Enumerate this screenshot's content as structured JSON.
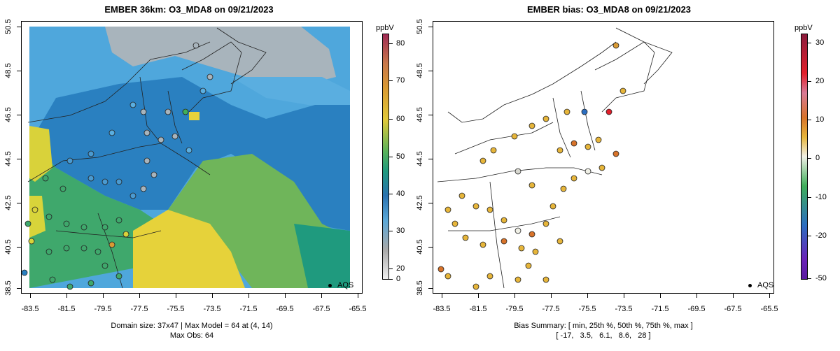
{
  "left_panel": {
    "title": "EMBER 36km: O3_MDA8 on 09/21/2023",
    "footer_line1": "Domain size: 37x47 | Max Model = 64 at (4, 14)",
    "footer_line2": "Max Obs: 64",
    "colorbar_unit": "ppbV",
    "colorbar_ticks": [
      "80",
      "70",
      "60",
      "50",
      "40",
      "30",
      "20",
      "0"
    ],
    "legend_label": "AQS"
  },
  "right_panel": {
    "title": "EMBER bias: O3_MDA8 on 09/21/2023",
    "footer_line1": "Bias Summary: [ min, 25th %, 50th %, 75th %, max ]",
    "footer_line2": "[ -17,   3.5,   6.1,   8.6,   28 ]",
    "colorbar_unit": "ppbV",
    "colorbar_ticks": [
      "30",
      "20",
      "10",
      "0",
      "-10",
      "-20",
      "-50"
    ],
    "legend_label": "AQS"
  },
  "axes": {
    "x_ticks": [
      "-83.5",
      "-81.5",
      "-79.5",
      "-77.5",
      "-75.5",
      "-73.5",
      "-71.5",
      "-69.5",
      "-67.5",
      "-65.5"
    ],
    "y_ticks": [
      "50.5",
      "48.5",
      "46.5",
      "44.5",
      "42.5",
      "40.5",
      "38.5"
    ]
  },
  "colors": {
    "cbar_left": [
      "#9e2a54",
      "#c8784a",
      "#d99a33",
      "#e0c93a",
      "#58b25a",
      "#1f9a7e",
      "#2a72b0",
      "#5aa8d8",
      "#a9a9a9",
      "#f0f0f0"
    ],
    "cbar_right": [
      "#8b1c3c",
      "#e21e2a",
      "#d8732a",
      "#e6b53a",
      "#f0f0e6",
      "#3fae5a",
      "#2b6ec0",
      "#6a22b8"
    ]
  }
}
